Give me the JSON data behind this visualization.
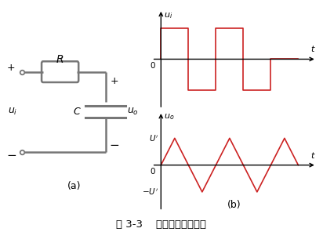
{
  "fig_title": "图 3-3    积分电路及其波形",
  "fig_title_fontsize": 10,
  "bg_color": "#ffffff",
  "square_wave_color": "#cc2222",
  "triangle_wave_color": "#cc2222",
  "axis_color": "#555555",
  "circuit_color": "#777777",
  "square_wave_x": [
    0.0,
    0.0,
    1.5,
    1.5,
    3.0,
    3.0,
    4.5,
    4.5,
    6.0,
    6.0,
    7.5
  ],
  "square_wave_y": [
    0.0,
    1.0,
    1.0,
    -1.0,
    -1.0,
    1.0,
    1.0,
    -1.0,
    -1.0,
    0.0,
    0.0
  ],
  "triangle_wave_x": [
    0.0,
    0.75,
    2.25,
    3.75,
    5.25,
    6.75,
    7.5
  ],
  "triangle_wave_y": [
    0.0,
    0.7,
    -0.7,
    0.7,
    -0.7,
    0.7,
    0.0
  ]
}
